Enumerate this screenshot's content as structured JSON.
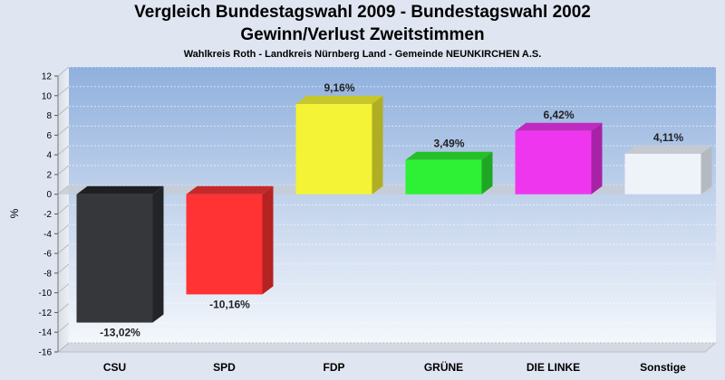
{
  "chart_data": {
    "type": "bar",
    "title": "Vergleich Bundestagswahl 2009 - Bundestagswahl 2002",
    "subtitle": "Gewinn/Verlust Zweitstimmen",
    "subsubtitle": "Wahlkreis Roth - Landkreis Nürnberg Land - Gemeinde NEUNKIRCHEN A.S.",
    "xlabel": "",
    "ylabel": "%",
    "ylim": [
      -16,
      12
    ],
    "ytick_step": 2,
    "grid": true,
    "categories": [
      "CSU",
      "SPD",
      "FDP",
      "GRÜNE",
      "DIE LINKE",
      "Sonstige"
    ],
    "values": [
      -13.02,
      -10.16,
      9.16,
      3.49,
      6.42,
      4.11
    ],
    "value_labels": [
      "-13,02%",
      "-10,16%",
      "9,16%",
      "3,49%",
      "6,42%",
      "4,11%"
    ],
    "colors": [
      "#35373b",
      "#ff3333",
      "#f4f335",
      "#2ef035",
      "#ef36ef",
      "#eef2f9"
    ],
    "side_colors": [
      "#232427",
      "#b42222",
      "#b0ae22",
      "#20a625",
      "#a722a7",
      "#b5b9c2"
    ],
    "top_colors": [
      "#1f2022",
      "#c42a2a",
      "#c8c72a",
      "#25bf2a",
      "#c02ac0",
      "#c5c9d2"
    ]
  }
}
